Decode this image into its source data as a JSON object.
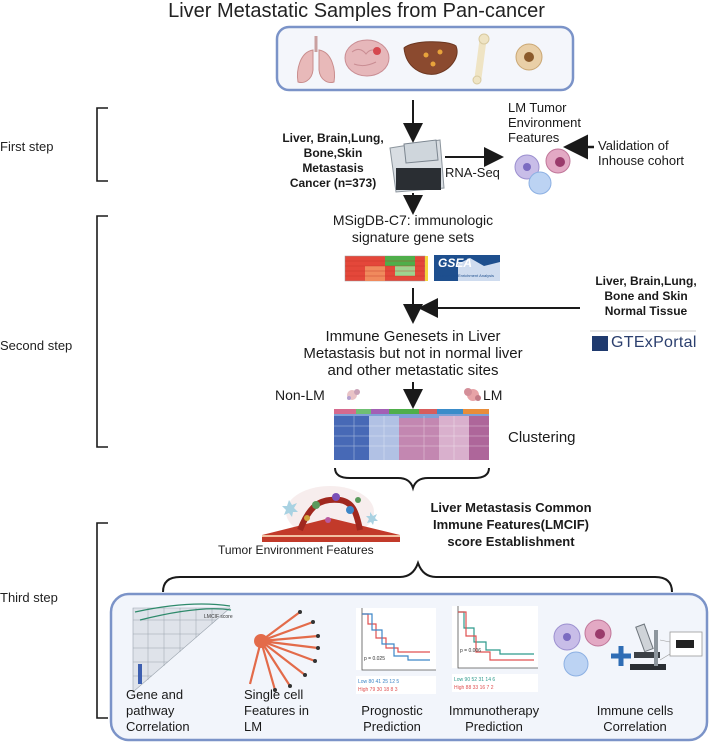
{
  "title": "Liver Metastatic Samples from Pan-cancer",
  "steps": {
    "first": "First step",
    "second": "Second step",
    "third": "Third step"
  },
  "first_step": {
    "cohort_lines": [
      "Liver, Brain,Lung,",
      "Bone,Skin",
      "Metastasis",
      "Cancer (n=373)"
    ],
    "rnaseq": "RNA-Seq",
    "lm_features": [
      "LM Tumor",
      "Environment",
      "Features"
    ],
    "validation": [
      "Validation of",
      "Inhouse cohort"
    ]
  },
  "second_step": {
    "msigdb": [
      "MSigDB-C7: immunologic",
      "signature gene sets"
    ],
    "gsea_logo": "GSEA",
    "gsea_sub": "Gene Set Enrichment Analysis",
    "normal_tissue": [
      "Liver, Brain,Lung,",
      "Bone and Skin",
      "Normal Tissue"
    ],
    "gtex_logo": "GTExPortal",
    "immune_genesets": [
      "Immune Genesets in Liver",
      "Metastasis but not in normal liver",
      "and other metastatic sites"
    ],
    "non_lm": "Non-LM",
    "lm": "LM",
    "clustering": "Clustering"
  },
  "third_step": {
    "tumor_env": "Tumor Environment Features",
    "lmcif": [
      "Liver Metastasis Common",
      "Immune Features(LMCIF)",
      "score Establishment"
    ],
    "panels": [
      {
        "caption": [
          "Gene and",
          "pathway",
          "Correlation"
        ]
      },
      {
        "caption": [
          "Single cell",
          "Features in",
          "LM"
        ]
      },
      {
        "caption": [
          "Prognostic",
          "Prediction"
        ]
      },
      {
        "caption": [
          "Immunotherapy",
          "Prediction"
        ]
      },
      {
        "caption": [
          "Immune cells",
          "Correlation"
        ]
      }
    ]
  },
  "colors": {
    "box_border": "#7b93c8",
    "box_fill": "#f2f5fb",
    "arrow": "#1a1a1a"
  }
}
